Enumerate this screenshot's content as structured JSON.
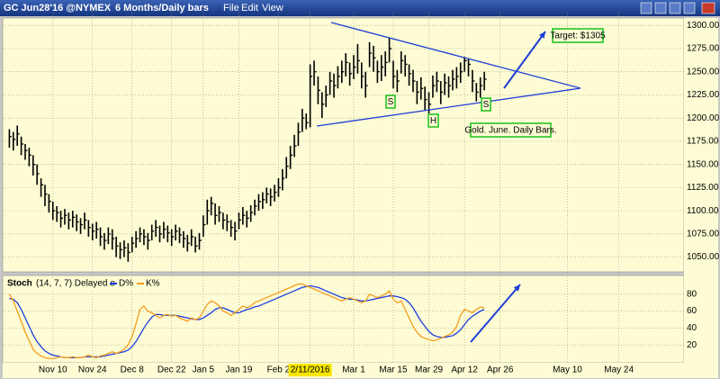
{
  "window": {
    "symbol": "GC Jun28'16 @NYMEX",
    "period": "6 Months/Daily bars",
    "menu": [
      "File",
      "Edit",
      "View"
    ]
  },
  "chart_data": [
    {
      "type": "ohlc",
      "color": "#000000",
      "grid": true,
      "annotations": [
        "S",
        "S",
        "H",
        "Target: $1305",
        "Gold. June. Daily Bars."
      ],
      "xlim": [
        -1,
        170
      ],
      "xticks": [
        {
          "value": 11,
          "label": "Nov 10"
        },
        {
          "value": 21,
          "label": "Nov 24"
        },
        {
          "value": 31,
          "label": "Dec 8"
        },
        {
          "value": 41,
          "label": "Dec 22"
        },
        {
          "value": 49,
          "label": "Jan 5"
        },
        {
          "value": 58,
          "label": "Jan 19"
        },
        {
          "value": 68,
          "label": "Feb 2"
        },
        {
          "value": 76,
          "label": "2/11/2016"
        },
        {
          "value": 87,
          "label": "Mar 1"
        },
        {
          "value": 97,
          "label": "Mar 15"
        },
        {
          "value": 106,
          "label": "Mar 29"
        },
        {
          "value": 115,
          "label": "Apr 12"
        },
        {
          "value": 124,
          "label": "Apr 26"
        },
        {
          "value": 141,
          "label": "May 10"
        },
        {
          "value": 154,
          "label": "May 24"
        }
      ],
      "ylim": [
        1036,
        1308
      ],
      "yticks": [
        {
          "value": 1050,
          "label": "1050.00"
        },
        {
          "value": 1075,
          "label": "1075.00"
        },
        {
          "value": 1100,
          "label": "1100.00"
        },
        {
          "value": 1125,
          "label": "1125.00"
        },
        {
          "value": 1150,
          "label": "1150.00"
        },
        {
          "value": 1175,
          "label": "1175.00"
        },
        {
          "value": 1200,
          "label": "1200.00"
        },
        {
          "value": 1225,
          "label": "1225.00"
        },
        {
          "value": 1250,
          "label": "1250.00"
        },
        {
          "value": 1275,
          "label": "1275.00"
        },
        {
          "value": 1300,
          "label": "1300.00"
        }
      ],
      "high": [
        1188,
        1185,
        1192,
        1180,
        1172,
        1168,
        1160,
        1150,
        1135,
        1128,
        1118,
        1110,
        1105,
        1100,
        1102,
        1098,
        1100,
        1096,
        1092,
        1098,
        1090,
        1086,
        1088,
        1082,
        1076,
        1082,
        1080,
        1072,
        1066,
        1068,
        1065,
        1072,
        1078,
        1082,
        1080,
        1076,
        1085,
        1090,
        1084,
        1088,
        1084,
        1080,
        1085,
        1082,
        1078,
        1074,
        1080,
        1072,
        1076,
        1095,
        1112,
        1115,
        1108,
        1105,
        1098,
        1096,
        1090,
        1088,
        1098,
        1104,
        1100,
        1106,
        1112,
        1118,
        1120,
        1125,
        1124,
        1128,
        1135,
        1145,
        1158,
        1170,
        1182,
        1195,
        1210,
        1205,
        1258,
        1262,
        1245,
        1228,
        1235,
        1250,
        1248,
        1256,
        1262,
        1270,
        1260,
        1268,
        1280,
        1260,
        1250,
        1282,
        1278,
        1262,
        1268,
        1272,
        1287,
        1262,
        1252,
        1272,
        1268,
        1258,
        1252,
        1240,
        1244,
        1234,
        1228,
        1246,
        1250,
        1240,
        1248,
        1245,
        1252,
        1255,
        1260,
        1266,
        1264,
        1252,
        1238,
        1244,
        1250
      ],
      "low": [
        1168,
        1165,
        1170,
        1160,
        1155,
        1148,
        1138,
        1128,
        1115,
        1105,
        1098,
        1090,
        1088,
        1082,
        1085,
        1080,
        1082,
        1078,
        1075,
        1080,
        1072,
        1068,
        1070,
        1062,
        1058,
        1064,
        1058,
        1050,
        1048,
        1050,
        1045,
        1055,
        1060,
        1066,
        1063,
        1058,
        1068,
        1072,
        1066,
        1070,
        1066,
        1062,
        1068,
        1065,
        1060,
        1056,
        1062,
        1055,
        1058,
        1072,
        1085,
        1095,
        1085,
        1088,
        1080,
        1078,
        1072,
        1068,
        1080,
        1085,
        1082,
        1088,
        1095,
        1100,
        1102,
        1108,
        1105,
        1110,
        1115,
        1122,
        1135,
        1145,
        1158,
        1170,
        1185,
        1188,
        1190,
        1235,
        1215,
        1200,
        1212,
        1225,
        1222,
        1232,
        1238,
        1245,
        1235,
        1242,
        1248,
        1232,
        1222,
        1255,
        1250,
        1238,
        1240,
        1245,
        1260,
        1232,
        1228,
        1248,
        1245,
        1235,
        1228,
        1215,
        1220,
        1208,
        1205,
        1222,
        1228,
        1215,
        1225,
        1222,
        1230,
        1232,
        1238,
        1250,
        1245,
        1228,
        1218,
        1222,
        1230
      ],
      "close": [
        1180,
        1177,
        1183,
        1172,
        1165,
        1160,
        1150,
        1140,
        1128,
        1118,
        1110,
        1100,
        1098,
        1092,
        1095,
        1090,
        1093,
        1088,
        1085,
        1090,
        1082,
        1078,
        1080,
        1072,
        1068,
        1075,
        1070,
        1062,
        1058,
        1060,
        1055,
        1065,
        1070,
        1075,
        1072,
        1068,
        1078,
        1082,
        1075,
        1080,
        1076,
        1072,
        1078,
        1074,
        1070,
        1065,
        1072,
        1062,
        1068,
        1085,
        1100,
        1108,
        1095,
        1098,
        1090,
        1088,
        1082,
        1078,
        1090,
        1095,
        1092,
        1098,
        1105,
        1110,
        1112,
        1118,
        1115,
        1120,
        1125,
        1135,
        1148,
        1160,
        1170,
        1185,
        1200,
        1195,
        1245,
        1250,
        1230,
        1215,
        1225,
        1240,
        1235,
        1245,
        1250,
        1260,
        1248,
        1255,
        1262,
        1245,
        1235,
        1270,
        1265,
        1250,
        1255,
        1260,
        1275,
        1245,
        1240,
        1262,
        1258,
        1248,
        1240,
        1228,
        1232,
        1220,
        1215,
        1235,
        1240,
        1228,
        1238,
        1235,
        1242,
        1245,
        1250,
        1262,
        1258,
        1240,
        1228,
        1235,
        1242
      ]
    },
    {
      "type": "line",
      "title": "Stoch",
      "subtitle": "(14, 7, 7) Delayed e",
      "grid": true,
      "ylim": [
        0,
        100
      ],
      "yticks": [
        20,
        40,
        60,
        80
      ],
      "series": [
        {
          "name": "D%",
          "color": "#1e3ee0",
          "values": [
            75,
            74,
            70,
            62,
            52,
            42,
            32,
            24,
            18,
            13,
            10,
            8,
            7,
            6,
            5,
            5,
            5,
            5,
            5,
            6,
            6,
            6,
            6,
            6,
            7,
            8,
            9,
            10,
            11,
            12,
            14,
            18,
            24,
            32,
            40,
            47,
            53,
            56,
            56,
            55,
            55,
            55,
            55,
            54,
            53,
            52,
            51,
            50,
            50,
            52,
            55,
            58,
            62,
            64,
            64,
            62,
            60,
            58,
            58,
            60,
            62,
            63,
            65,
            66,
            68,
            70,
            72,
            74,
            76,
            78,
            80,
            82,
            84,
            86,
            88,
            89,
            90,
            89,
            88,
            86,
            84,
            82,
            80,
            78,
            76,
            75,
            74,
            74,
            73,
            72,
            72,
            73,
            74,
            75,
            76,
            77,
            78,
            78,
            77,
            76,
            74,
            70,
            64,
            56,
            48,
            42,
            36,
            32,
            30,
            29,
            29,
            30,
            31,
            34,
            38,
            44,
            50,
            54,
            57,
            60,
            62
          ]
        },
        {
          "name": "K%",
          "color": "#f39c1e",
          "values": [
            80,
            72,
            60,
            48,
            35,
            25,
            15,
            10,
            7,
            5,
            4,
            4,
            5,
            6,
            5,
            5,
            6,
            5,
            5,
            6,
            8,
            6,
            5,
            7,
            8,
            10,
            12,
            10,
            12,
            15,
            20,
            30,
            45,
            62,
            66,
            60,
            58,
            55,
            52,
            55,
            56,
            54,
            55,
            52,
            50,
            48,
            52,
            50,
            52,
            60,
            68,
            72,
            70,
            66,
            60,
            58,
            55,
            58,
            62,
            66,
            64,
            66,
            70,
            72,
            74,
            76,
            78,
            80,
            82,
            84,
            86,
            88,
            90,
            92,
            92,
            90,
            88,
            86,
            84,
            82,
            80,
            78,
            76,
            74,
            72,
            74,
            76,
            74,
            72,
            70,
            72,
            80,
            78,
            76,
            78,
            80,
            84,
            74,
            70,
            72,
            62,
            52,
            42,
            35,
            30,
            28,
            26,
            25,
            26,
            28,
            30,
            32,
            35,
            42,
            55,
            62,
            60,
            58,
            62,
            65,
            64
          ]
        }
      ]
    }
  ]
}
